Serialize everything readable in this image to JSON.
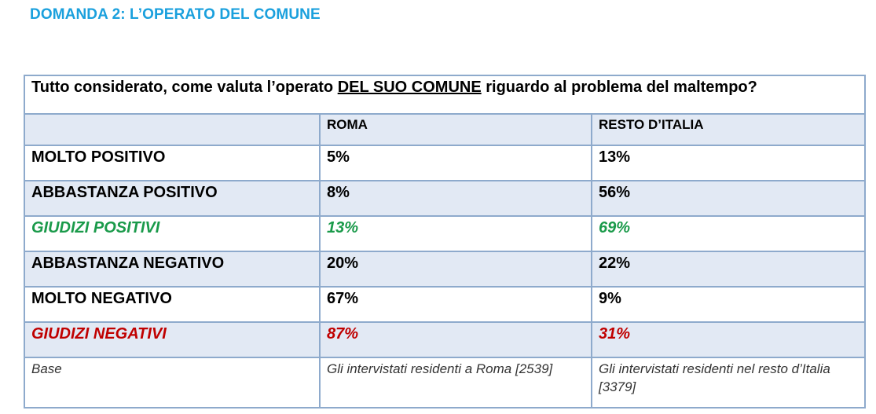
{
  "title": "DOMANDA 2: L’OPERATO DEL COMUNE",
  "question": {
    "before": "Tutto considerato, come valuta l’operato ",
    "underlined": "DEL SUO COMUNE",
    "after": " riguardo al problema del maltempo?"
  },
  "columns": [
    "",
    "ROMA",
    "RESTO D’ITALIA"
  ],
  "rows": [
    {
      "label": "MOLTO POSITIVO",
      "roma": "5%",
      "resto": "13%"
    },
    {
      "label": "ABBASTANZA POSITIVO",
      "roma": "8%",
      "resto": "56%"
    },
    {
      "label": "GIUDIZI POSITIVI",
      "roma": "13%",
      "resto": "69%"
    },
    {
      "label": "ABBASTANZA NEGATIVO",
      "roma": "20%",
      "resto": "22%"
    },
    {
      "label": "MOLTO NEGATIVO",
      "roma": "67%",
      "resto": "9%"
    },
    {
      "label": "GIUDIZI NEGATIVI",
      "roma": "87%",
      "resto": "31%"
    }
  ],
  "base": {
    "label": "Base",
    "roma": "Gli intervistati residenti a Roma [2539]",
    "resto": "Gli intervistati residenti nel resto d’Italia [3379]"
  },
  "colors": {
    "title": "#1aa0dd",
    "positive": "#1a9a4a",
    "negative": "#c00000",
    "border": "#8eaacc",
    "shade": "#e2e9f4"
  }
}
